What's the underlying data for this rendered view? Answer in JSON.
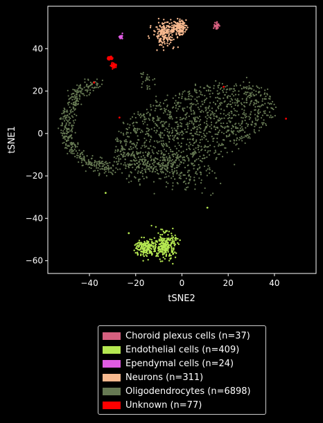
{
  "chart_data": {
    "type": "scatter",
    "title": "",
    "xlabel": "tSNE2",
    "ylabel": "tSNE1",
    "xlim": [
      -58,
      58
    ],
    "ylim": [
      -66,
      60
    ],
    "xticks": [
      -40,
      -20,
      0,
      20,
      40
    ],
    "yticks": [
      -60,
      -40,
      -20,
      0,
      20,
      40
    ],
    "xtick_labels": [
      "−40",
      "−20",
      "0",
      "20",
      "40"
    ],
    "ytick_labels": [
      "−60",
      "−40",
      "−20",
      "0",
      "20",
      "40"
    ],
    "grid": false,
    "legend_position": "below",
    "series": [
      {
        "name": "Choroid plexus cells (n=37)",
        "color": "#d6607f",
        "clusters": [
          {
            "center": [
              14.8,
              51.0
            ],
            "spread": [
              0.6,
              1.0
            ],
            "n": 37
          }
        ]
      },
      {
        "name": "Endothelial cells (n=409)",
        "color": "#b5e851",
        "clusters": [
          {
            "center": [
              -16.0,
              -54.0
            ],
            "spread": [
              2.2,
              2.2
            ],
            "n": 150
          },
          {
            "center": [
              -7.5,
              -53.0
            ],
            "spread": [
              2.4,
              3.0
            ],
            "n": 259
          }
        ],
        "outliers": [
          [
            -33.0,
            -28.0
          ],
          [
            -23.0,
            -47.0
          ],
          [
            11.0,
            -35.0
          ],
          [
            -5.0,
            -59.0
          ]
        ]
      },
      {
        "name": "Ependymal cells (n=24)",
        "color": "#e05be3",
        "clusters": [
          {
            "center": [
              -26.5,
              45.5
            ],
            "spread": [
              0.4,
              0.4
            ],
            "n": 24
          }
        ]
      },
      {
        "name": "Neurons (n=311)",
        "color": "#f7b98f",
        "clusters": [
          {
            "center": [
              -7.5,
              47.0
            ],
            "spread": [
              2.5,
              2.8
            ],
            "n": 180
          },
          {
            "center": [
              -1.5,
              50.0
            ],
            "spread": [
              1.6,
              1.6
            ],
            "n": 131
          }
        ]
      },
      {
        "name": "Oligodendrocytes (n=6898)",
        "color": "#667953",
        "blob": {
          "center": [
            6.0,
            4.0
          ],
          "radii": [
            36.0,
            17.0
          ],
          "angle_deg": 20,
          "n": 1200
        },
        "arc": {
          "points": [
            [
              -37.0,
              23.0
            ],
            [
              -45.0,
              20.0
            ],
            [
              -49.0,
              10.0
            ],
            [
              -50.0,
              0.0
            ],
            [
              -47.0,
              -8.0
            ],
            [
              -40.0,
              -14.0
            ],
            [
              -30.0,
              -17.0
            ]
          ],
          "n": 420
        },
        "minor": {
          "center": [
            -15.5,
            26.0
          ],
          "spread": [
            1.4,
            2.5
          ],
          "n": 25
        }
      },
      {
        "name": "Unknown (n=77)",
        "color": "#ff0000",
        "clusters": [
          {
            "center": [
              -31.0,
              35.5
            ],
            "spread": [
              0.5,
              0.5
            ],
            "n": 30
          },
          {
            "center": [
              -29.5,
              32.0
            ],
            "spread": [
              0.6,
              0.6
            ],
            "n": 40
          }
        ],
        "outliers": [
          [
            -38.0,
            24.0
          ],
          [
            -27.0,
            7.5
          ],
          [
            18.0,
            22.0
          ],
          [
            45.0,
            7.0
          ]
        ]
      }
    ]
  }
}
